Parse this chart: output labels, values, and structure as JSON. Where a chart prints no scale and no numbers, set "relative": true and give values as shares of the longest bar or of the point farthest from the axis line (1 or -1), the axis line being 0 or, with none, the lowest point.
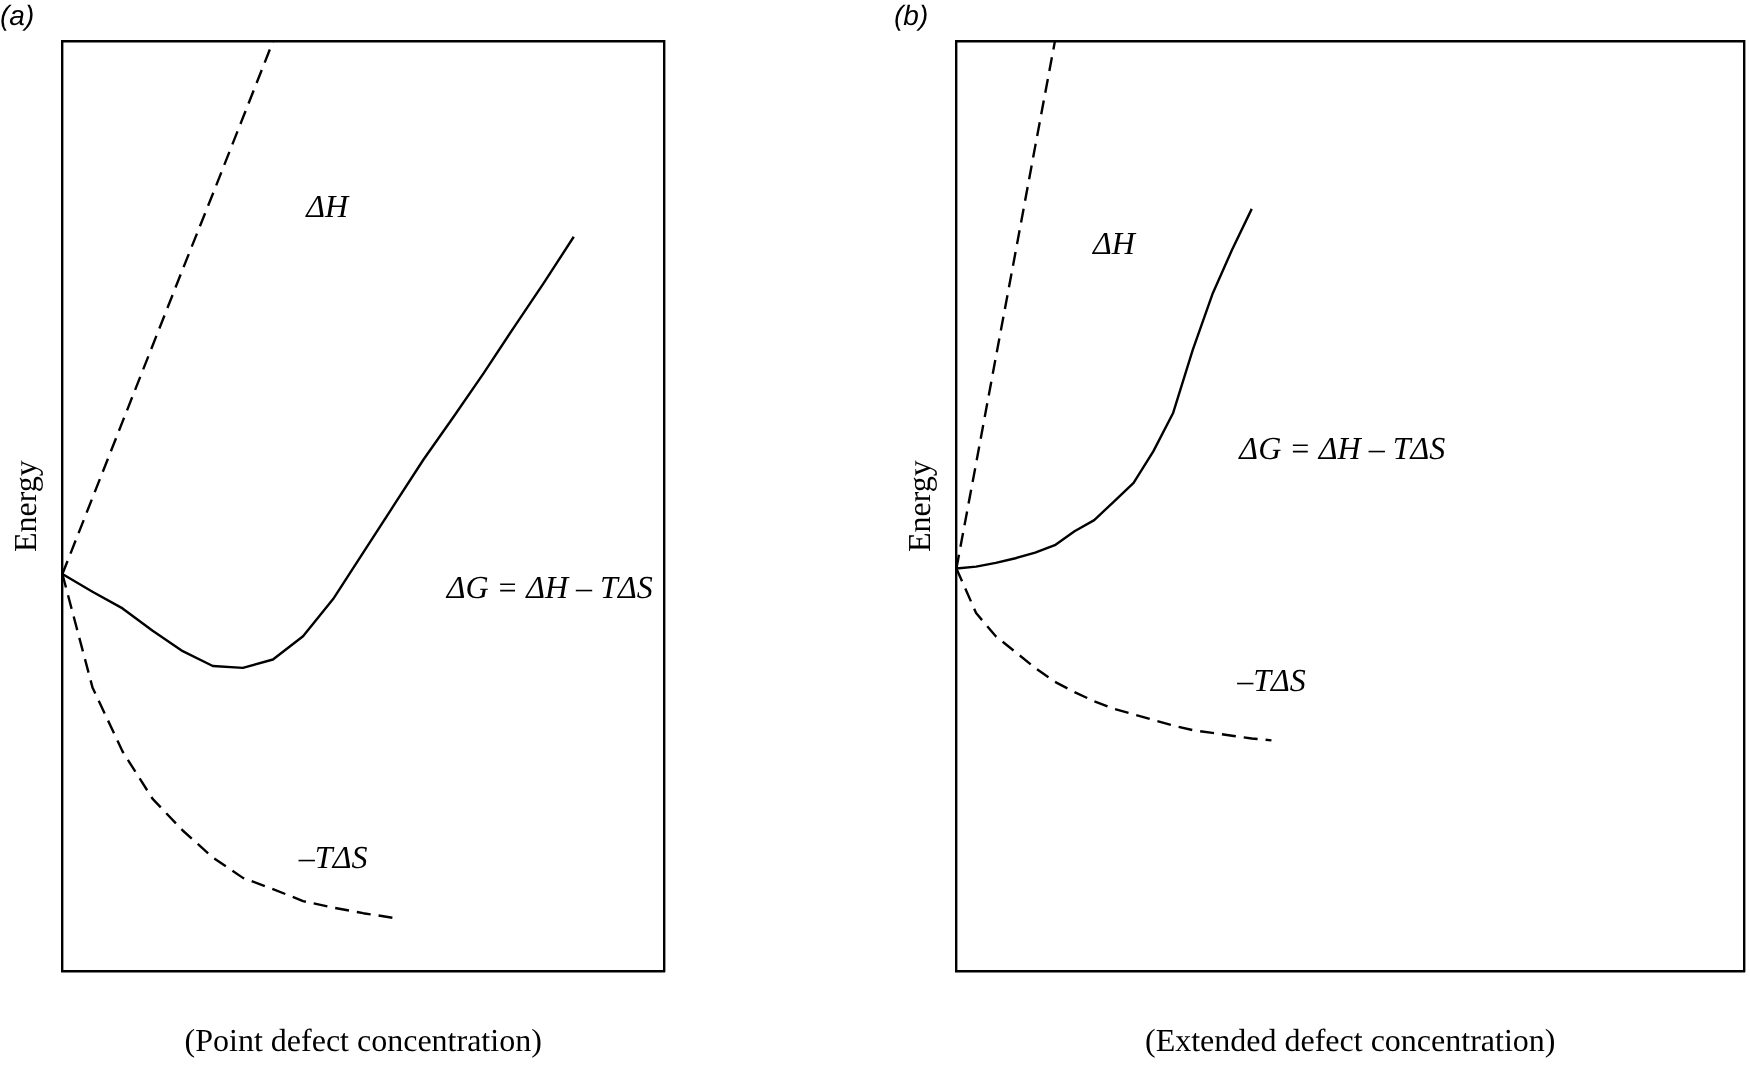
{
  "chart_data": [
    {
      "type": "line",
      "title": "(a)",
      "xlabel": "(Point defect concentration)",
      "ylabel": "Energy",
      "relative": true,
      "grid": false,
      "legend": false,
      "marker": "none",
      "categories": [
        null,
        null,
        null,
        null,
        null,
        null,
        null,
        null,
        null,
        null,
        null,
        null,
        null,
        null,
        null,
        null,
        null,
        null,
        null,
        null,
        null
      ],
      "series": [
        {
          "color": "#000000",
          "line_style": "dashed",
          "values": [
            0.427,
            0.509,
            0.591,
            0.673,
            0.755,
            0.836,
            0.918,
            1.0,
            null,
            null,
            null,
            null,
            null,
            null,
            null,
            null,
            null,
            null,
            null,
            null,
            null
          ]
        },
        {
          "color": "#000000",
          "line_style": "solid",
          "values": [
            0.427,
            0.408,
            0.39,
            0.366,
            0.344,
            0.328,
            0.326,
            0.335,
            0.36,
            0.4,
            0.45,
            0.5,
            0.55,
            0.596,
            0.643,
            0.692,
            0.74,
            0.79,
            null,
            null,
            null
          ]
        },
        {
          "color": "#000000",
          "line_style": "dashed",
          "values": [
            0.427,
            0.305,
            0.236,
            0.185,
            0.151,
            0.122,
            0.1,
            0.088,
            0.075,
            0.068,
            0.062,
            0.057,
            null,
            null,
            null,
            null,
            null,
            null,
            null,
            null,
            null
          ]
        }
      ],
      "annotations": [
        "ΔH",
        "ΔG = ΔH – TΔS",
        "–TΔS"
      ]
    },
    {
      "type": "line",
      "title": "(b)",
      "xlabel": "(Extended defect concentration)",
      "ylabel": "Energy",
      "relative": true,
      "grid": false,
      "legend": false,
      "marker": "none",
      "categories": [
        null,
        null,
        null,
        null,
        null,
        null,
        null,
        null,
        null,
        null,
        null,
        null,
        null,
        null,
        null,
        null,
        null,
        null,
        null,
        null,
        null,
        null,
        null,
        null,
        null,
        null,
        null,
        null,
        null,
        null,
        null,
        null,
        null,
        null,
        null,
        null,
        null,
        null,
        null,
        null,
        null
      ],
      "series": [
        {
          "color": "#000000",
          "line_style": "dashed",
          "values": [
            0.433,
            0.546,
            0.66,
            0.773,
            0.887,
            1.0,
            null,
            null,
            null,
            null,
            null,
            null,
            null,
            null,
            null,
            null,
            null,
            null,
            null,
            null,
            null,
            null,
            null,
            null,
            null,
            null,
            null,
            null,
            null,
            null,
            null,
            null,
            null,
            null,
            null,
            null,
            null,
            null,
            null,
            null,
            null
          ]
        },
        {
          "color": "#000000",
          "line_style": "solid",
          "values": [
            0.433,
            0.435,
            0.439,
            0.444,
            0.45,
            0.458,
            0.473,
            0.485,
            0.505,
            0.525,
            0.559,
            0.6,
            0.668,
            0.728,
            0.776,
            0.82,
            null,
            null,
            null,
            null,
            null,
            null,
            null,
            null,
            null,
            null,
            null,
            null,
            null,
            null,
            null,
            null,
            null,
            null,
            null,
            null,
            null,
            null,
            null,
            null,
            null
          ]
        },
        {
          "color": "#000000",
          "line_style": "dashed",
          "values": [
            0.433,
            0.385,
            0.36,
            0.343,
            0.326,
            0.311,
            0.3,
            0.29,
            0.282,
            0.276,
            0.27,
            0.264,
            0.259,
            0.256,
            0.253,
            0.25,
            0.248,
            null,
            null,
            null,
            null,
            null,
            null,
            null,
            null,
            null,
            null,
            null,
            null,
            null,
            null,
            null,
            null,
            null,
            null,
            null,
            null,
            null,
            null,
            null,
            null
          ]
        }
      ],
      "annotations": [
        "ΔH",
        "ΔG = ΔH – TΔS",
        "–TΔS"
      ]
    }
  ]
}
